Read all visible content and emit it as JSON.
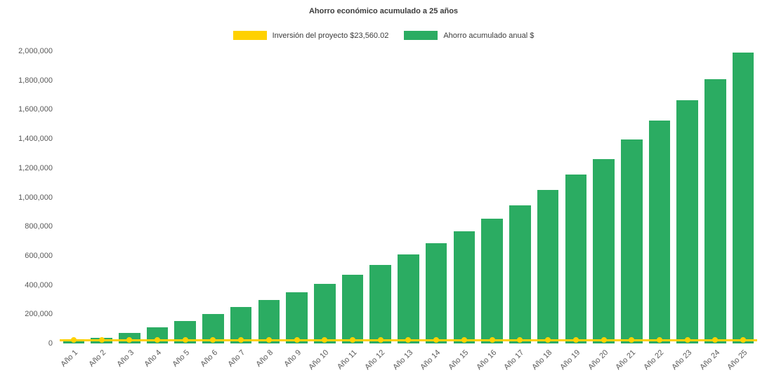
{
  "chart_data": {
    "type": "bar",
    "title": "Ahorro económico acumulado a 25 años",
    "categories": [
      "Año 1",
      "Año 2",
      "Año 3",
      "Año 4",
      "Año 5",
      "Año 6",
      "Año 7",
      "Año 8",
      "Año 9",
      "Año 10",
      "Año 11",
      "Año 12",
      "Año 13",
      "Año 14",
      "Año 15",
      "Año 16",
      "Año 17",
      "Año 18",
      "Año 19",
      "Año 20",
      "Año 21",
      "Año 22",
      "Año 23",
      "Año 24",
      "Año 25"
    ],
    "series": [
      {
        "name": "Inversión del proyecto $23,560.02",
        "type": "line",
        "marker": "circle",
        "color": "#FFD100",
        "values": [
          23560.02,
          23560.02,
          23560.02,
          23560.02,
          23560.02,
          23560.02,
          23560.02,
          23560.02,
          23560.02,
          23560.02,
          23560.02,
          23560.02,
          23560.02,
          23560.02,
          23560.02,
          23560.02,
          23560.02,
          23560.02,
          23560.02,
          23560.02,
          23560.02,
          23560.02,
          23560.02,
          23560.02,
          23560.02
        ]
      },
      {
        "name": "Ahorro acumulado anual $",
        "type": "bar",
        "color": "#2BAC62",
        "values": [
          15000,
          38000,
          72000,
          110000,
          152000,
          200000,
          248000,
          298000,
          350000,
          408000,
          470000,
          537000,
          608000,
          686000,
          767000,
          854000,
          945000,
          1050000,
          1156000,
          1262000,
          1395000,
          1525000,
          1665000,
          1810000,
          1990000
        ]
      }
    ],
    "ylim": [
      0,
      2000000
    ],
    "ytick_step": 200000,
    "yticks": [
      "0",
      "200,000",
      "400,000",
      "600,000",
      "800,000",
      "1,000,000",
      "1,200,000",
      "1,400,000",
      "1,600,000",
      "1,800,000",
      "2,000,000"
    ],
    "grid": false,
    "legend_position": "top",
    "background": "#ffffff"
  }
}
